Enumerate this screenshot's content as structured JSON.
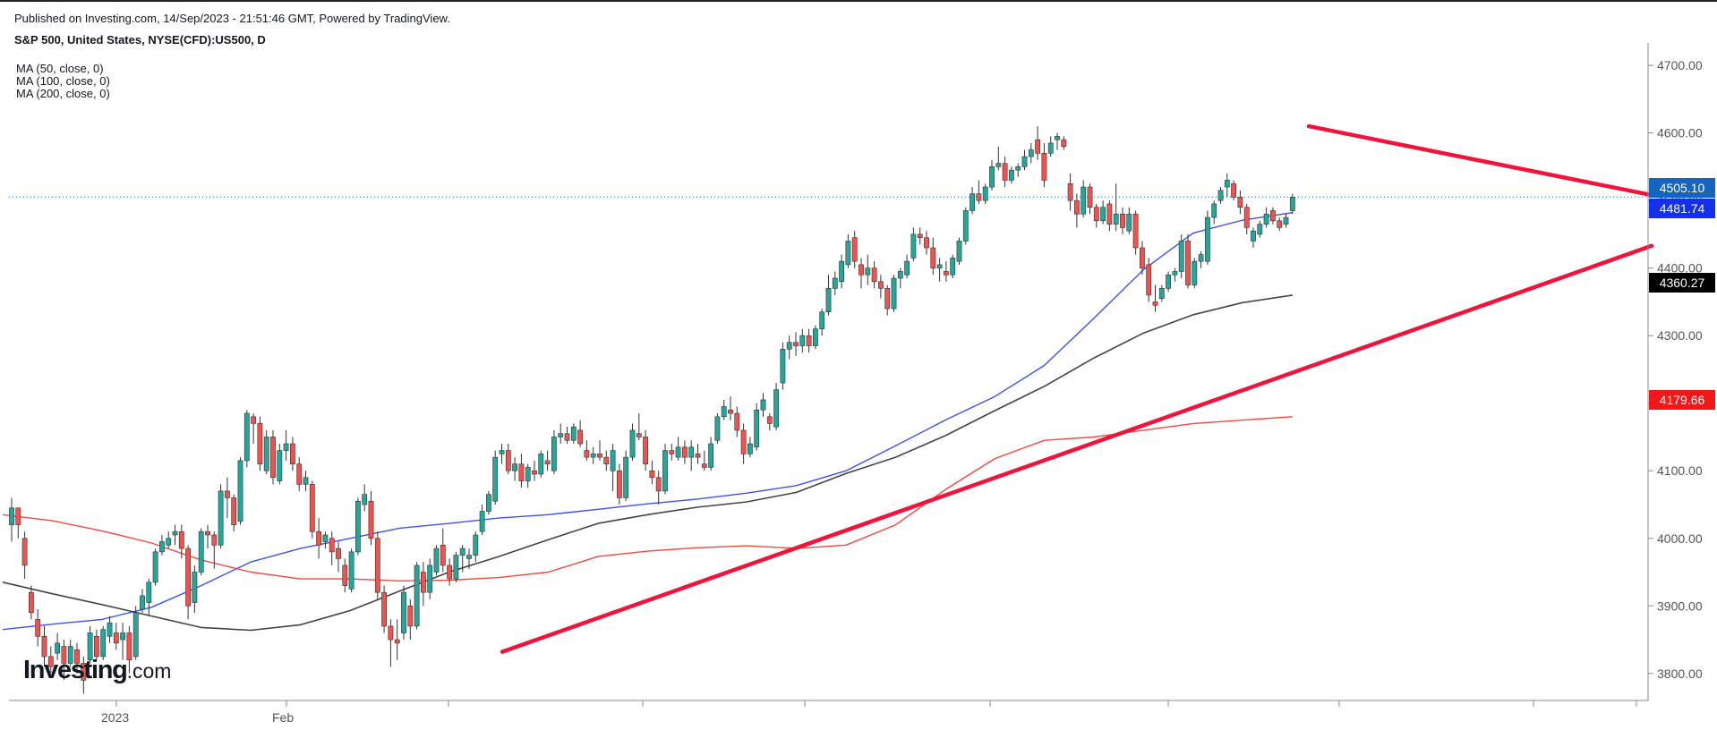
{
  "header": {
    "published": "Published on Investing.com, 14/Sep/2023 - 21:51:46 GMT, Powered by TradingView.",
    "symbol": "S&P 500, United States, NYSE(CFD):US500, D"
  },
  "legend": {
    "ma50": "MA (50, close, 0)",
    "ma100": "MA (100, close, 0)",
    "ma200": "MA (200, close, 0)"
  },
  "price_labels": {
    "last": "4505.10",
    "ma50": "4481.74",
    "ma100": "4360.27",
    "ma200": "4179.66"
  },
  "logo": {
    "brand": "Investing",
    "suffix": ".com"
  },
  "colors": {
    "up": "#26a69a",
    "down": "#ef5350",
    "ma50": "#3d50f0",
    "ma100": "#444444",
    "ma200": "#f04a40",
    "trendline": "#f0143c",
    "last_price": "#1565c0"
  },
  "chart_data": {
    "type": "candlestick",
    "ylim": [
      3760,
      4720
    ],
    "y_ticks": [
      "4700.00",
      "4600.00",
      "4500.00",
      "4400.00",
      "4300.00",
      "4200.00",
      "4100.00",
      "4000.00",
      "3900.00",
      "3800.00"
    ],
    "x_tick_labels": [
      "2023",
      "Feb"
    ],
    "last_price": 4505.1,
    "series": [
      {
        "name": "MA (50, close, 0)",
        "values": [
          3865,
          3873,
          3880,
          3898,
          3930,
          3965,
          3985,
          4000,
          4015,
          4022,
          4030,
          4035,
          4043,
          4051,
          4058,
          4067,
          4078,
          4100,
          4137,
          4175,
          4210,
          4256,
          4326,
          4398,
          4452,
          4471,
          4482
        ]
      },
      {
        "name": "MA (100, close, 0)",
        "values": [
          3935,
          3918,
          3902,
          3885,
          3868,
          3864,
          3872,
          3893,
          3922,
          3950,
          3973,
          3998,
          4022,
          4035,
          4046,
          4054,
          4068,
          4096,
          4120,
          4152,
          4189,
          4225,
          4267,
          4304,
          4331,
          4349,
          4360
        ]
      },
      {
        "name": "MA (200, close, 0)",
        "values": [
          4035,
          4026,
          4011,
          3993,
          3968,
          3950,
          3940,
          3940,
          3937,
          3938,
          3942,
          3950,
          3973,
          3981,
          3986,
          3989,
          3985,
          3990,
          4020,
          4072,
          4118,
          4145,
          4150,
          4160,
          4170,
          4175,
          4180
        ]
      }
    ],
    "trendlines": [
      {
        "points": [
          [
            "2023-03-13",
            3832
          ],
          [
            "2023-09-14",
            4433
          ]
        ]
      },
      {
        "points": [
          [
            "2023-07-27",
            4610
          ],
          [
            "2023-09-14",
            4508
          ]
        ]
      }
    ],
    "candles": [
      [
        4020,
        4060,
        3995,
        4045
      ],
      [
        4045,
        4040,
        4000,
        4020
      ],
      [
        4000,
        4010,
        3940,
        3960
      ],
      [
        3920,
        3930,
        3880,
        3890
      ],
      [
        3880,
        3895,
        3840,
        3855
      ],
      [
        3855,
        3870,
        3810,
        3825
      ],
      [
        3825,
        3840,
        3800,
        3810
      ],
      [
        3830,
        3860,
        3820,
        3845
      ],
      [
        3840,
        3850,
        3790,
        3815
      ],
      [
        3815,
        3850,
        3810,
        3840
      ],
      [
        3835,
        3845,
        3800,
        3815
      ],
      [
        3815,
        3825,
        3770,
        3790
      ],
      [
        3820,
        3870,
        3815,
        3860
      ],
      [
        3855,
        3865,
        3820,
        3825
      ],
      [
        3825,
        3870,
        3820,
        3865
      ],
      [
        3855,
        3885,
        3845,
        3875
      ],
      [
        3860,
        3875,
        3835,
        3845
      ],
      [
        3850,
        3875,
        3820,
        3860
      ],
      [
        3860,
        3870,
        3800,
        3820
      ],
      [
        3825,
        3900,
        3820,
        3890
      ],
      [
        3895,
        3925,
        3890,
        3915
      ],
      [
        3905,
        3940,
        3885,
        3935
      ],
      [
        3935,
        3985,
        3930,
        3980
      ],
      [
        3980,
        4005,
        3975,
        3995
      ],
      [
        3990,
        4010,
        3985,
        4000
      ],
      [
        4005,
        4020,
        3990,
        4010
      ],
      [
        4010,
        4020,
        3970,
        3985
      ],
      [
        3985,
        3990,
        3880,
        3900
      ],
      [
        3905,
        3960,
        3890,
        3950
      ],
      [
        3950,
        4015,
        3945,
        4010
      ],
      [
        4010,
        4020,
        3985,
        4005
      ],
      [
        4005,
        4010,
        3955,
        3990
      ],
      [
        3990,
        4080,
        3985,
        4070
      ],
      [
        4070,
        4090,
        4030,
        4060
      ],
      [
        4060,
        4065,
        4010,
        4020
      ],
      [
        4025,
        4120,
        4020,
        4115
      ],
      [
        4115,
        4190,
        4105,
        4185
      ],
      [
        4180,
        4185,
        4140,
        4170
      ],
      [
        4170,
        4180,
        4100,
        4110
      ],
      [
        4100,
        4160,
        4095,
        4150
      ],
      [
        4150,
        4160,
        4080,
        4090
      ],
      [
        4085,
        4140,
        4080,
        4130
      ],
      [
        4130,
        4160,
        4115,
        4140
      ],
      [
        4140,
        4150,
        4100,
        4110
      ],
      [
        4110,
        4120,
        4070,
        4080
      ],
      [
        4080,
        4100,
        4070,
        4090
      ],
      [
        4080,
        4085,
        4000,
        4010
      ],
      [
        4010,
        4030,
        3970,
        3990
      ],
      [
        3995,
        4010,
        3985,
        4005
      ],
      [
        4000,
        4010,
        3960,
        3980
      ],
      [
        3985,
        3995,
        3950,
        3970
      ],
      [
        3960,
        3970,
        3920,
        3930
      ],
      [
        3925,
        3985,
        3920,
        3980
      ],
      [
        3980,
        4060,
        3975,
        4055
      ],
      [
        4050,
        4080,
        4040,
        4065
      ],
      [
        4055,
        4070,
        3990,
        4000
      ],
      [
        4000,
        4010,
        3910,
        3920
      ],
      [
        3920,
        3930,
        3860,
        3870
      ],
      [
        3870,
        3880,
        3810,
        3850
      ],
      [
        3850,
        3880,
        3820,
        3845
      ],
      [
        3860,
        3930,
        3850,
        3920
      ],
      [
        3900,
        3910,
        3850,
        3870
      ],
      [
        3870,
        3965,
        3865,
        3960
      ],
      [
        3950,
        3965,
        3900,
        3920
      ],
      [
        3920,
        3970,
        3910,
        3960
      ],
      [
        3950,
        3990,
        3945,
        3985
      ],
      [
        3990,
        4015,
        3950,
        3960
      ],
      [
        3960,
        3970,
        3930,
        3940
      ],
      [
        3940,
        3980,
        3935,
        3975
      ],
      [
        3975,
        3990,
        3950,
        3985
      ],
      [
        3970,
        3985,
        3955,
        3975
      ],
      [
        3975,
        4010,
        3965,
        4005
      ],
      [
        4010,
        4050,
        4005,
        4040
      ],
      [
        4040,
        4070,
        4035,
        4065
      ],
      [
        4055,
        4130,
        4050,
        4120
      ],
      [
        4125,
        4140,
        4110,
        4130
      ],
      [
        4130,
        4140,
        4095,
        4100
      ],
      [
        4100,
        4120,
        4085,
        4110
      ],
      [
        4110,
        4125,
        4075,
        4085
      ],
      [
        4085,
        4110,
        4075,
        4105
      ],
      [
        4100,
        4115,
        4085,
        4095
      ],
      [
        4095,
        4130,
        4090,
        4125
      ],
      [
        4115,
        4130,
        4100,
        4110
      ],
      [
        4100,
        4160,
        4095,
        4150
      ],
      [
        4150,
        4170,
        4140,
        4155
      ],
      [
        4155,
        4165,
        4140,
        4145
      ],
      [
        4145,
        4170,
        4140,
        4165
      ],
      [
        4160,
        4175,
        4135,
        4140
      ],
      [
        4130,
        4145,
        4115,
        4120
      ],
      [
        4120,
        4135,
        4110,
        4125
      ],
      [
        4125,
        4145,
        4115,
        4120
      ],
      [
        4120,
        4130,
        4100,
        4110
      ],
      [
        4100,
        4140,
        4070,
        4130
      ],
      [
        4100,
        4110,
        4050,
        4060
      ],
      [
        4060,
        4130,
        4055,
        4120
      ],
      [
        4120,
        4170,
        4115,
        4160
      ],
      [
        4155,
        4185,
        4145,
        4150
      ],
      [
        4150,
        4160,
        4100,
        4110
      ],
      [
        4100,
        4115,
        4080,
        4090
      ],
      [
        4090,
        4100,
        4050,
        4070
      ],
      [
        4070,
        4140,
        4065,
        4130
      ],
      [
        4130,
        4140,
        4115,
        4125
      ],
      [
        4120,
        4150,
        4115,
        4135
      ],
      [
        4135,
        4145,
        4110,
        4120
      ],
      [
        4120,
        4145,
        4100,
        4135
      ],
      [
        4125,
        4140,
        4110,
        4120
      ],
      [
        4110,
        4130,
        4100,
        4105
      ],
      [
        4105,
        4150,
        4100,
        4140
      ],
      [
        4145,
        4185,
        4140,
        4180
      ],
      [
        4180,
        4205,
        4175,
        4195
      ],
      [
        4190,
        4210,
        4175,
        4185
      ],
      [
        4185,
        4195,
        4150,
        4160
      ],
      [
        4160,
        4170,
        4110,
        4125
      ],
      [
        4125,
        4150,
        4120,
        4140
      ],
      [
        4135,
        4200,
        4130,
        4190
      ],
      [
        4190,
        4215,
        4180,
        4205
      ],
      [
        4180,
        4185,
        4160,
        4170
      ],
      [
        4165,
        4230,
        4160,
        4220
      ],
      [
        4230,
        4290,
        4220,
        4280
      ],
      [
        4280,
        4300,
        4265,
        4290
      ],
      [
        4290,
        4305,
        4270,
        4285
      ],
      [
        4285,
        4310,
        4275,
        4300
      ],
      [
        4300,
        4310,
        4275,
        4285
      ],
      [
        4285,
        4315,
        4280,
        4310
      ],
      [
        4310,
        4340,
        4300,
        4335
      ],
      [
        4335,
        4390,
        4330,
        4370
      ],
      [
        4370,
        4395,
        4360,
        4385
      ],
      [
        4380,
        4420,
        4370,
        4410
      ],
      [
        4405,
        4450,
        4400,
        4440
      ],
      [
        4445,
        4455,
        4400,
        4410
      ],
      [
        4405,
        4415,
        4370,
        4390
      ],
      [
        4390,
        4420,
        4375,
        4400
      ],
      [
        4400,
        4410,
        4370,
        4380
      ],
      [
        4380,
        4390,
        4355,
        4370
      ],
      [
        4370,
        4375,
        4330,
        4340
      ],
      [
        4340,
        4390,
        4335,
        4385
      ],
      [
        4385,
        4400,
        4370,
        4395
      ],
      [
        4390,
        4420,
        4385,
        4410
      ],
      [
        4415,
        4460,
        4410,
        4450
      ],
      [
        4450,
        4460,
        4435,
        4445
      ],
      [
        4445,
        4455,
        4420,
        4430
      ],
      [
        4430,
        4445,
        4390,
        4400
      ],
      [
        4400,
        4415,
        4380,
        4405
      ],
      [
        4395,
        4410,
        4380,
        4390
      ],
      [
        4390,
        4420,
        4385,
        4415
      ],
      [
        4410,
        4445,
        4405,
        4440
      ],
      [
        4440,
        4490,
        4435,
        4485
      ],
      [
        4485,
        4520,
        4480,
        4510
      ],
      [
        4510,
        4530,
        4495,
        4500
      ],
      [
        4500,
        4525,
        4495,
        4520
      ],
      [
        4520,
        4560,
        4515,
        4550
      ],
      [
        4550,
        4580,
        4545,
        4555
      ],
      [
        4555,
        4565,
        4520,
        4530
      ],
      [
        4530,
        4550,
        4525,
        4545
      ],
      [
        4545,
        4555,
        4535,
        4550
      ],
      [
        4550,
        4575,
        4545,
        4565
      ],
      [
        4565,
        4585,
        4555,
        4575
      ],
      [
        4590,
        4610,
        4560,
        4570
      ],
      [
        4570,
        4585,
        4520,
        4530
      ],
      [
        4570,
        4595,
        4565,
        4585
      ],
      [
        4590,
        4600,
        4575,
        4595
      ],
      [
        4590,
        4595,
        4575,
        4580
      ],
      [
        4525,
        4540,
        4485,
        4500
      ],
      [
        4500,
        4510,
        4460,
        4480
      ],
      [
        4480,
        4530,
        4475,
        4520
      ],
      [
        4520,
        4525,
        4480,
        4490
      ],
      [
        4490,
        4495,
        4460,
        4470
      ],
      [
        4470,
        4500,
        4465,
        4490
      ],
      [
        4495,
        4500,
        4455,
        4465
      ],
      [
        4465,
        4525,
        4455,
        4480
      ],
      [
        4480,
        4490,
        4450,
        4460
      ],
      [
        4455,
        4490,
        4450,
        4480
      ],
      [
        4480,
        4485,
        4420,
        4430
      ],
      [
        4430,
        4440,
        4390,
        4400
      ],
      [
        4405,
        4415,
        4350,
        4360
      ],
      [
        4350,
        4375,
        4335,
        4345
      ],
      [
        4355,
        4375,
        4350,
        4370
      ],
      [
        4370,
        4395,
        4365,
        4390
      ],
      [
        4390,
        4400,
        4380,
        4395
      ],
      [
        4395,
        4450,
        4385,
        4440
      ],
      [
        4440,
        4450,
        4370,
        4375
      ],
      [
        4375,
        4415,
        4370,
        4410
      ],
      [
        4410,
        4425,
        4400,
        4420
      ],
      [
        4410,
        4485,
        4405,
        4475
      ],
      [
        4475,
        4500,
        4465,
        4495
      ],
      [
        4500,
        4520,
        4495,
        4515
      ],
      [
        4520,
        4540,
        4505,
        4530
      ],
      [
        4525,
        4530,
        4500,
        4505
      ],
      [
        4505,
        4515,
        4480,
        4490
      ],
      [
        4490,
        4495,
        4450,
        4460
      ],
      [
        4440,
        4460,
        4430,
        4455
      ],
      [
        4450,
        4470,
        4445,
        4465
      ],
      [
        4465,
        4490,
        4460,
        4480
      ],
      [
        4485,
        4490,
        4465,
        4470
      ],
      [
        4470,
        4475,
        4455,
        4460
      ],
      [
        4465,
        4480,
        4460,
        4475
      ],
      [
        4485,
        4510,
        4480,
        4505
      ]
    ]
  }
}
